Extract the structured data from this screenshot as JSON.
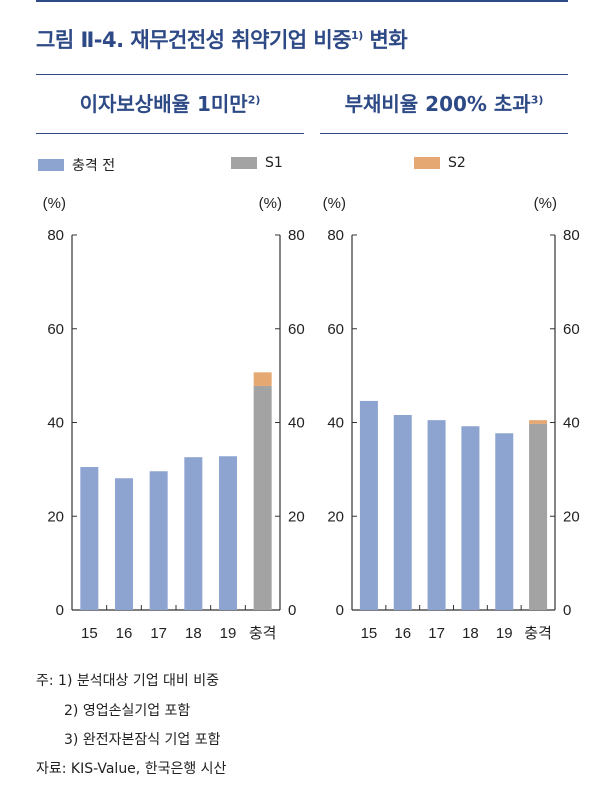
{
  "title": "그림 Ⅱ-4. 재무건전성 취약기업 비중",
  "title_sup": "1)",
  "title_suffix": " 변화",
  "colors": {
    "pre": "#8da3d0",
    "s1": "#a3a3a3",
    "s2": "#e6a872",
    "accent": "#2e4a86"
  },
  "legend": [
    "충격 전",
    "S1",
    "S2"
  ],
  "chart_data": [
    {
      "type": "bar",
      "title": "이자보상배율 1미만",
      "title_sup": "2)",
      "ylabel_left": "(%)",
      "ylabel_right": "(%)",
      "ylim": [
        0,
        80
      ],
      "yticks": [
        0,
        20,
        40,
        60,
        80
      ],
      "categories": [
        "15",
        "16",
        "17",
        "18",
        "19",
        "충격"
      ],
      "series": [
        {
          "name": "충격 전",
          "values": [
            30.5,
            28.1,
            29.6,
            32.6,
            32.8,
            null
          ]
        },
        {
          "name": "S1",
          "values": [
            null,
            null,
            null,
            null,
            null,
            47.8
          ]
        },
        {
          "name": "S2",
          "values": [
            null,
            null,
            null,
            null,
            null,
            2.9
          ]
        }
      ]
    },
    {
      "type": "bar",
      "title": "부채비율 200% 초과",
      "title_sup": "3)",
      "ylabel_left": "(%)",
      "ylabel_right": "(%)",
      "ylim": [
        0,
        80
      ],
      "yticks": [
        0,
        20,
        40,
        60,
        80
      ],
      "categories": [
        "15",
        "16",
        "17",
        "18",
        "19",
        "충격"
      ],
      "series": [
        {
          "name": "충격 전",
          "values": [
            44.6,
            41.6,
            40.5,
            39.2,
            37.7,
            null
          ]
        },
        {
          "name": "S1",
          "values": [
            null,
            null,
            null,
            null,
            null,
            39.7
          ]
        },
        {
          "name": "S2",
          "values": [
            null,
            null,
            null,
            null,
            null,
            0.8
          ]
        }
      ]
    }
  ],
  "notes": [
    "주: 1) 분석대상 기업 대비 비중",
    "2) 영업손실기업 포함",
    "3) 완전자본잠식 기업 포함",
    "자료: KIS-Value, 한국은행 시산"
  ]
}
